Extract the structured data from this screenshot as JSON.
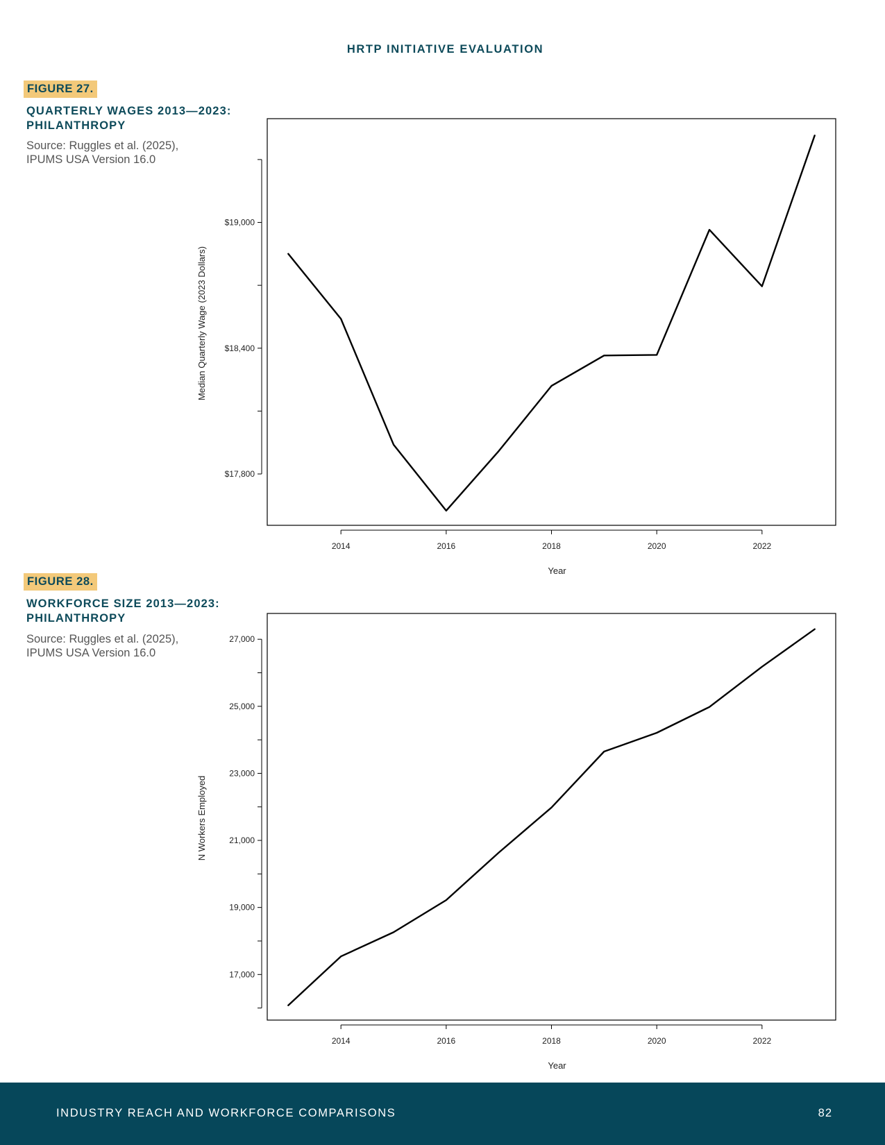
{
  "header": {
    "title": "HRTP INITIATIVE EVALUATION"
  },
  "figures": [
    {
      "tag": "FIGURE 27.",
      "title_lines": [
        "QUARTERLY WAGES 2013—2023:",
        "PHILANTHROPY"
      ],
      "source_lines": [
        "Source: Ruggles et al. (2025),",
        "IPUMS USA Version 16.0"
      ]
    },
    {
      "tag": "FIGURE 28.",
      "title_lines": [
        "WORKFORCE SIZE 2013—2023:",
        "PHILANTHROPY"
      ],
      "source_lines": [
        "Source: Ruggles et al. (2025),",
        "IPUMS USA Version 16.0"
      ]
    }
  ],
  "chart_data": [
    {
      "type": "line",
      "title": "",
      "xlabel": "Year",
      "ylabel": "Median Quarterly Wage (2023 Dollars)",
      "x": [
        2013,
        2014,
        2015,
        2016,
        2017,
        2018,
        2019,
        2020,
        2021,
        2022,
        2023
      ],
      "series": [
        {
          "values": [
            18850,
            18540,
            17940,
            17625,
            17910,
            18220,
            18365,
            18368,
            18965,
            18695,
            19415
          ]
        }
      ],
      "x_ticks": [
        2014,
        2016,
        2018,
        2020,
        2022
      ],
      "x_tick_labels": [
        "2014",
        "2016",
        "2018",
        "2020",
        "2022"
      ],
      "y_ticks": [
        17800,
        18100,
        18400,
        18700,
        19000,
        19300
      ],
      "y_tick_labels": [
        "$17,800",
        "",
        "$18,400",
        "",
        "$19,000",
        ""
      ],
      "xlim": [
        2012.6,
        2023.4
      ],
      "ylim": [
        17555,
        19495
      ],
      "grid": false,
      "color": "#000000"
    },
    {
      "type": "line",
      "title": "",
      "xlabel": "Year",
      "ylabel": "N Workers Employed",
      "x": [
        2013,
        2014,
        2015,
        2016,
        2017,
        2018,
        2019,
        2020,
        2021,
        2022,
        2023
      ],
      "series": [
        {
          "values": [
            16080,
            17540,
            18260,
            19220,
            20640,
            21980,
            23650,
            24210,
            24980,
            26180,
            27300
          ]
        }
      ],
      "x_ticks": [
        2014,
        2016,
        2018,
        2020,
        2022
      ],
      "x_tick_labels": [
        "2014",
        "2016",
        "2018",
        "2020",
        "2022"
      ],
      "y_ticks": [
        16000,
        17000,
        18000,
        19000,
        20000,
        21000,
        22000,
        23000,
        24000,
        25000,
        26000,
        27000
      ],
      "y_tick_labels": [
        "",
        "17,000",
        "",
        "19,000",
        "",
        "21,000",
        "",
        "23,000",
        "",
        "25,000",
        "",
        "27,000"
      ],
      "xlim": [
        2012.6,
        2023.4
      ],
      "ylim": [
        15640,
        27770
      ],
      "grid": false,
      "color": "#000000"
    }
  ],
  "footer": {
    "section_title": "INDUSTRY REACH AND WORKFORCE COMPARISONS",
    "page_number": "82"
  }
}
